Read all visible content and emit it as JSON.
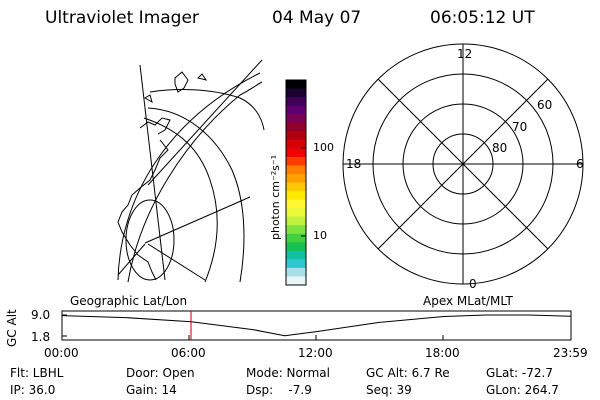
{
  "header": {
    "instrument": "Ultraviolet Imager",
    "date": "04 May 07",
    "time": "06:05:12 UT"
  },
  "colorbar": {
    "label": "photon cm⁻²s⁻¹",
    "ticks": [
      "100",
      "10"
    ],
    "scale": "log",
    "colors": [
      "#000000",
      "#1a0033",
      "#400055",
      "#600070",
      "#7a0050",
      "#90002a",
      "#b00010",
      "#d40008",
      "#f00000",
      "#ff3c00",
      "#ff8000",
      "#ffa000",
      "#ffc800",
      "#ffea00",
      "#fff830",
      "#eaf83a",
      "#c0f040",
      "#80e040",
      "#40d040",
      "#18c050",
      "#10c0a0",
      "#30c8d0",
      "#a8e0e8",
      "#e8f4f6"
    ]
  },
  "left_map": {
    "label": "Geographic Lat/Lon"
  },
  "polar_plot": {
    "label": "Apex MLat/MLT",
    "mlt_labels": {
      "top": "12",
      "left": "18",
      "right": "6",
      "bottom": "0"
    },
    "lat_labels": [
      "60",
      "70",
      "80"
    ]
  },
  "timeline": {
    "ylabel": "GC Alt",
    "y_ticks": [
      "9.0",
      "1.8"
    ],
    "x_ticks": [
      "00:00",
      "06:00",
      "12:00",
      "18:00",
      "23:59"
    ],
    "marker_time": "06:05",
    "altitude_curve": [
      {
        "hour": 0.0,
        "alt": 8.8
      },
      {
        "hour": 3.0,
        "alt": 8.1
      },
      {
        "hour": 6.1,
        "alt": 6.7
      },
      {
        "hour": 9.0,
        "alt": 4.0
      },
      {
        "hour": 10.5,
        "alt": 1.9
      },
      {
        "hour": 12.0,
        "alt": 3.3
      },
      {
        "hour": 15.0,
        "alt": 6.5
      },
      {
        "hour": 18.0,
        "alt": 8.5
      },
      {
        "hour": 20.0,
        "alt": 9.0
      },
      {
        "hour": 22.0,
        "alt": 9.0
      },
      {
        "hour": 23.98,
        "alt": 8.6
      }
    ]
  },
  "footer": {
    "row1": [
      "Flt: LBHL",
      "Door: Open",
      "Mode: Normal",
      "GC Alt: 6.7 Re",
      "GLat: -72.7"
    ],
    "row2": [
      "IP: 36.0",
      "Gain: 14",
      "Dsp:    -7.9",
      "Seq: 39",
      "GLon: 264.7"
    ]
  }
}
